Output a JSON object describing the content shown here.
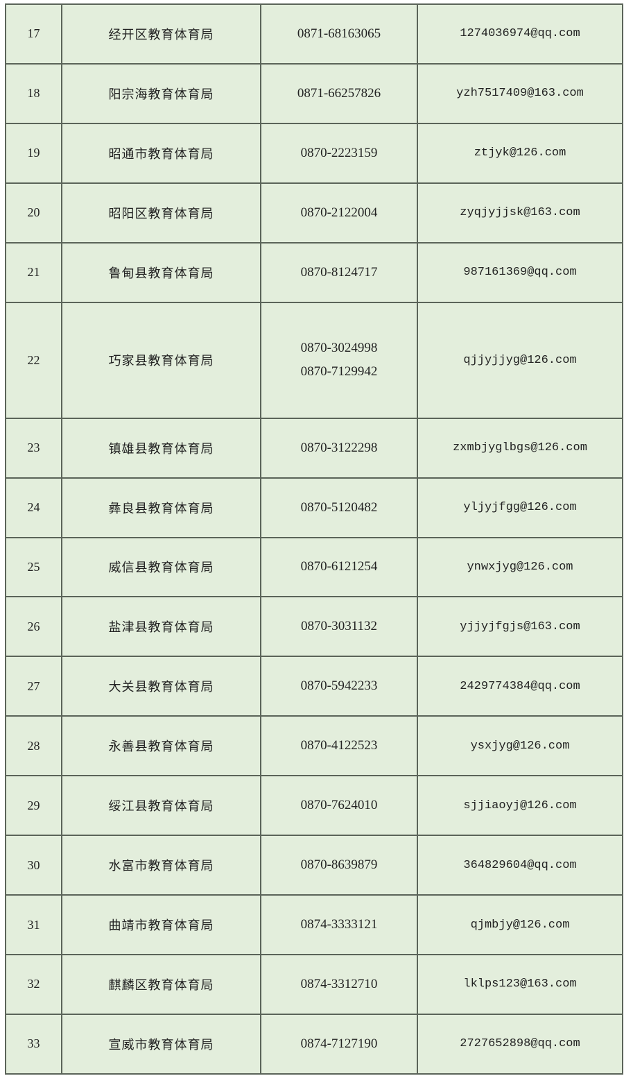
{
  "rows": [
    {
      "no": "17",
      "name": "经开区教育体育局",
      "phones": [
        "0871-68163065"
      ],
      "email": "1274036974@qq.com"
    },
    {
      "no": "18",
      "name": "阳宗海教育体育局",
      "phones": [
        "0871-66257826"
      ],
      "email": "yzh7517409@163.com"
    },
    {
      "no": "19",
      "name": "昭通市教育体育局",
      "phones": [
        "0870-2223159"
      ],
      "email": "ztjyk@126.com"
    },
    {
      "no": "20",
      "name": "昭阳区教育体育局",
      "phones": [
        "0870-2122004"
      ],
      "email": "zyqjyjjsk@163.com"
    },
    {
      "no": "21",
      "name": "鲁甸县教育体育局",
      "phones": [
        "0870-8124717"
      ],
      "email": "987161369@qq.com"
    },
    {
      "no": "22",
      "name": "巧家县教育体育局",
      "phones": [
        "0870-3024998",
        "0870-7129942"
      ],
      "email": "qjjyjjyg@126.com"
    },
    {
      "no": "23",
      "name": "镇雄县教育体育局",
      "phones": [
        "0870-3122298"
      ],
      "email": "zxmbjyglbgs@126.com"
    },
    {
      "no": "24",
      "name": "彝良县教育体育局",
      "phones": [
        "0870-5120482"
      ],
      "email": "yljyjfgg@126.com"
    },
    {
      "no": "25",
      "name": "威信县教育体育局",
      "phones": [
        "0870-6121254"
      ],
      "email": "ynwxjyg@126.com"
    },
    {
      "no": "26",
      "name": "盐津县教育体育局",
      "phones": [
        "0870-3031132"
      ],
      "email": "yjjyjfgjs@163.com"
    },
    {
      "no": "27",
      "name": "大关县教育体育局",
      "phones": [
        "0870-5942233"
      ],
      "email": "2429774384@qq.com"
    },
    {
      "no": "28",
      "name": "永善县教育体育局",
      "phones": [
        "0870-4122523"
      ],
      "email": "ysxjyg@126.com"
    },
    {
      "no": "29",
      "name": "绥江县教育体育局",
      "phones": [
        "0870-7624010"
      ],
      "email": "sjjiaoyj@126.com"
    },
    {
      "no": "30",
      "name": "水富市教育体育局",
      "phones": [
        "0870-8639879"
      ],
      "email": "364829604@qq.com"
    },
    {
      "no": "31",
      "name": "曲靖市教育体育局",
      "phones": [
        "0874-3333121"
      ],
      "email": "qjmbjy@126.com"
    },
    {
      "no": "32",
      "name": "麒麟区教育体育局",
      "phones": [
        "0874-3312710"
      ],
      "email": "lklps123@163.com"
    },
    {
      "no": "33",
      "name": "宣威市教育体育局",
      "phones": [
        "0874-7127190"
      ],
      "email": "2727652898@qq.com"
    }
  ],
  "colors": {
    "table_background": "#e3eedc",
    "grid_line": "#5b6459",
    "text": "#222222"
  }
}
